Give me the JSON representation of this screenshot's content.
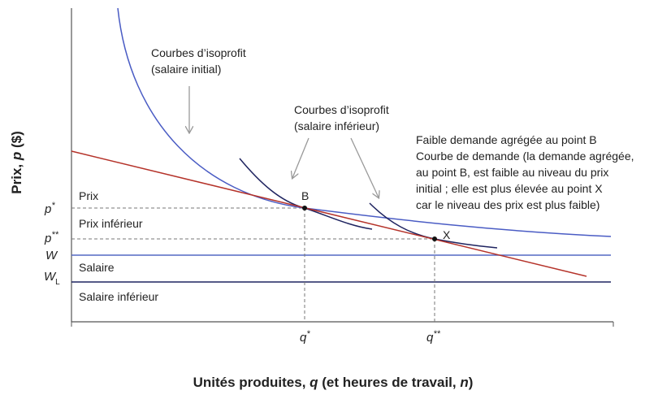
{
  "annotations": {
    "isoprofit_initial": [
      "Courbes d’isoprofit",
      "(salaire initial)"
    ],
    "isoprofit_lower": [
      "Courbes d’isoprofit",
      "(salaire inférieur)"
    ],
    "demand_note": [
      "Faible demande agrégée au point B",
      "Courbe de demande (la demande agrégée,",
      "au point B, est faible au niveau du prix",
      "initial ; elle est plus élevée au point X",
      "car le niveau des prix est plus faible)"
    ]
  },
  "region_labels": [
    "Prix",
    "Prix inférieur",
    "Salaire",
    "Salaire inférieur"
  ],
  "points": [
    "B",
    "X"
  ],
  "y_labels": {
    "p_star": {
      "symbol": "p",
      "sup": "*"
    },
    "p_double_star": {
      "symbol": "p",
      "sup": "**"
    },
    "w": "W",
    "w_l": {
      "symbol": "W",
      "sub": "L"
    }
  },
  "x_labels": {
    "q_star": {
      "symbol": "q",
      "sup": "*"
    },
    "q_double_star": {
      "symbol": "q",
      "sup": "**"
    }
  },
  "y_axis_title": [
    "Prix, ",
    "p",
    " ($)"
  ],
  "x_axis_title": [
    "Unités produites, ",
    "q",
    " (et heures de travail, ",
    "n",
    ")"
  ]
}
